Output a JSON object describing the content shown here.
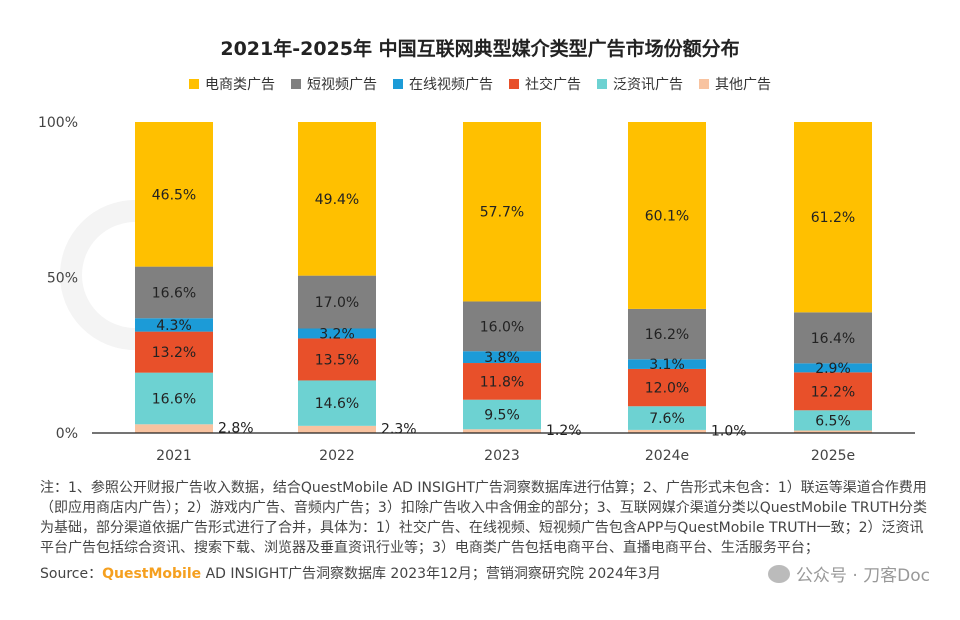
{
  "chart_data": {
    "type": "bar",
    "stacked": true,
    "title": "2021年-2025年 中国互联网典型媒介类型广告市场份额分布",
    "categories": [
      "2021",
      "2022",
      "2023",
      "2024e",
      "2025e"
    ],
    "y_ticks": [
      "0%",
      "50%",
      "100%"
    ],
    "ylim": [
      0,
      100
    ],
    "legend_position": "top",
    "series": [
      {
        "name": "其他广告",
        "color": "#F8C3A0",
        "values": [
          2.8,
          2.3,
          1.2,
          1.0,
          0.8
        ],
        "labels": [
          "2.8%",
          "2.3%",
          "1.2%",
          "1.0%",
          ""
        ]
      },
      {
        "name": "泛资讯广告",
        "color": "#6DD2D2",
        "values": [
          16.6,
          14.6,
          9.5,
          7.6,
          6.5
        ],
        "labels": [
          "16.6%",
          "14.6%",
          "9.5%",
          "7.6%",
          "6.5%"
        ]
      },
      {
        "name": "社交广告",
        "color": "#E8502A",
        "values": [
          13.2,
          13.5,
          11.8,
          12.0,
          12.2
        ],
        "labels": [
          "13.2%",
          "13.5%",
          "11.8%",
          "12.0%",
          "12.2%"
        ]
      },
      {
        "name": "在线视频广告",
        "color": "#1C9BD7",
        "values": [
          4.3,
          3.2,
          3.8,
          3.1,
          2.9
        ],
        "labels": [
          "4.3%",
          "3.2%",
          "3.8%",
          "3.1%",
          "2.9%"
        ]
      },
      {
        "name": "短视频广告",
        "color": "#808080",
        "values": [
          16.6,
          17.0,
          16.0,
          16.2,
          16.4
        ],
        "labels": [
          "16.6%",
          "17.0%",
          "16.0%",
          "16.2%",
          "16.4%"
        ]
      },
      {
        "name": "电商类广告",
        "color": "#FFC000",
        "values": [
          46.5,
          49.4,
          57.7,
          60.1,
          61.2
        ],
        "labels": [
          "46.5%",
          "49.4%",
          "57.7%",
          "60.1%",
          "61.2%"
        ]
      }
    ],
    "legend_order": [
      "电商类广告",
      "短视频广告",
      "在线视频广告",
      "社交广告",
      "泛资讯广告",
      "其他广告"
    ]
  },
  "watermark": "QUEST MOBILE",
  "notes": "注：1、参照公开财报广告收入数据，结合QuestMobile AD INSIGHT广告洞察数据库进行估算；2、广告形式未包含：1）联运等渠道合作费用（即应用商店内广告）；2）游戏内广告、音频内广告；3）扣除广告收入中含佣金的部分；3、互联网媒介渠道分类以QuestMobile TRUTH分类为基础，部分渠道依据广告形式进行了合并，具体为：1）社交广告、在线视频、短视频广告包含APP与QuestMobile TRUTH一致；2）泛资讯平台广告包括综合资讯、搜索下载、浏览器及垂直资讯行业等；3）电商类广告包括电商平台、直播电商平台、生活服务平台；",
  "source": {
    "prefix": "Source：",
    "brand": "QuestMobile",
    "text": " AD INSIGHT广告洞察数据库 2023年12月；营销洞察研究院 2024年3月"
  },
  "wechat": "公众号 · 刀客Doc"
}
